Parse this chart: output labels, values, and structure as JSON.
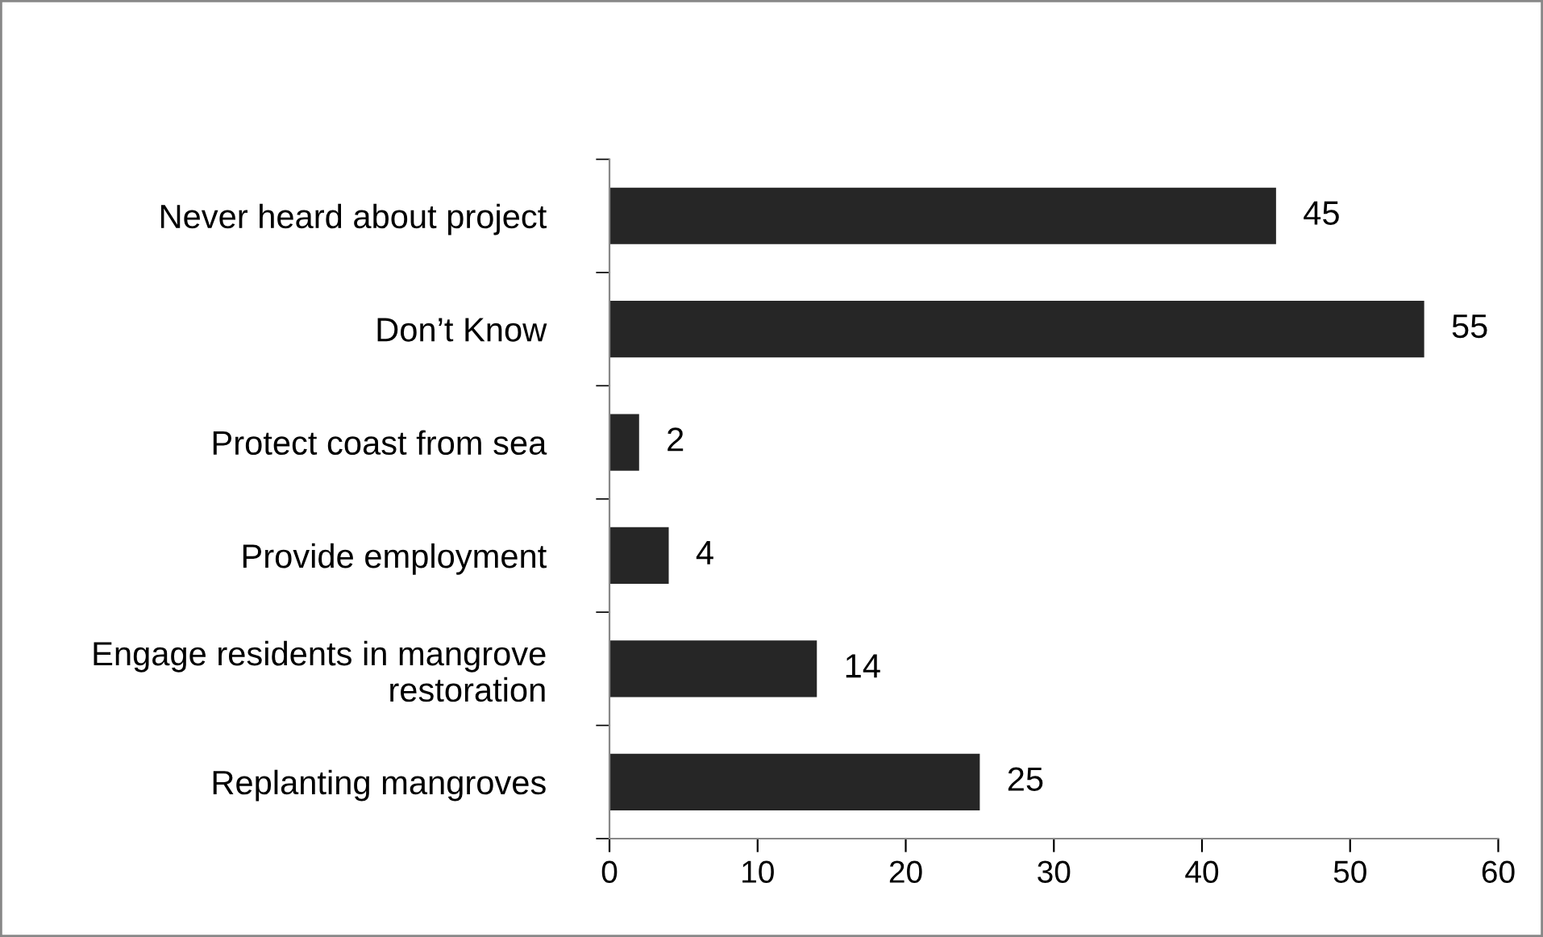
{
  "chart_data": {
    "type": "bar",
    "orientation": "horizontal",
    "categories": [
      "Never heard about project",
      "Don’t Know",
      "Protect coast from sea",
      "Provide employment",
      "Engage residents in mangrove\nrestoration",
      "Replanting mangroves"
    ],
    "values": [
      45,
      55,
      2,
      4,
      14,
      25
    ],
    "color": "#262626",
    "xlim": [
      0,
      60
    ],
    "xticks": [
      0,
      10,
      20,
      30,
      40,
      50,
      60
    ],
    "grid": false,
    "data_labels": true
  }
}
